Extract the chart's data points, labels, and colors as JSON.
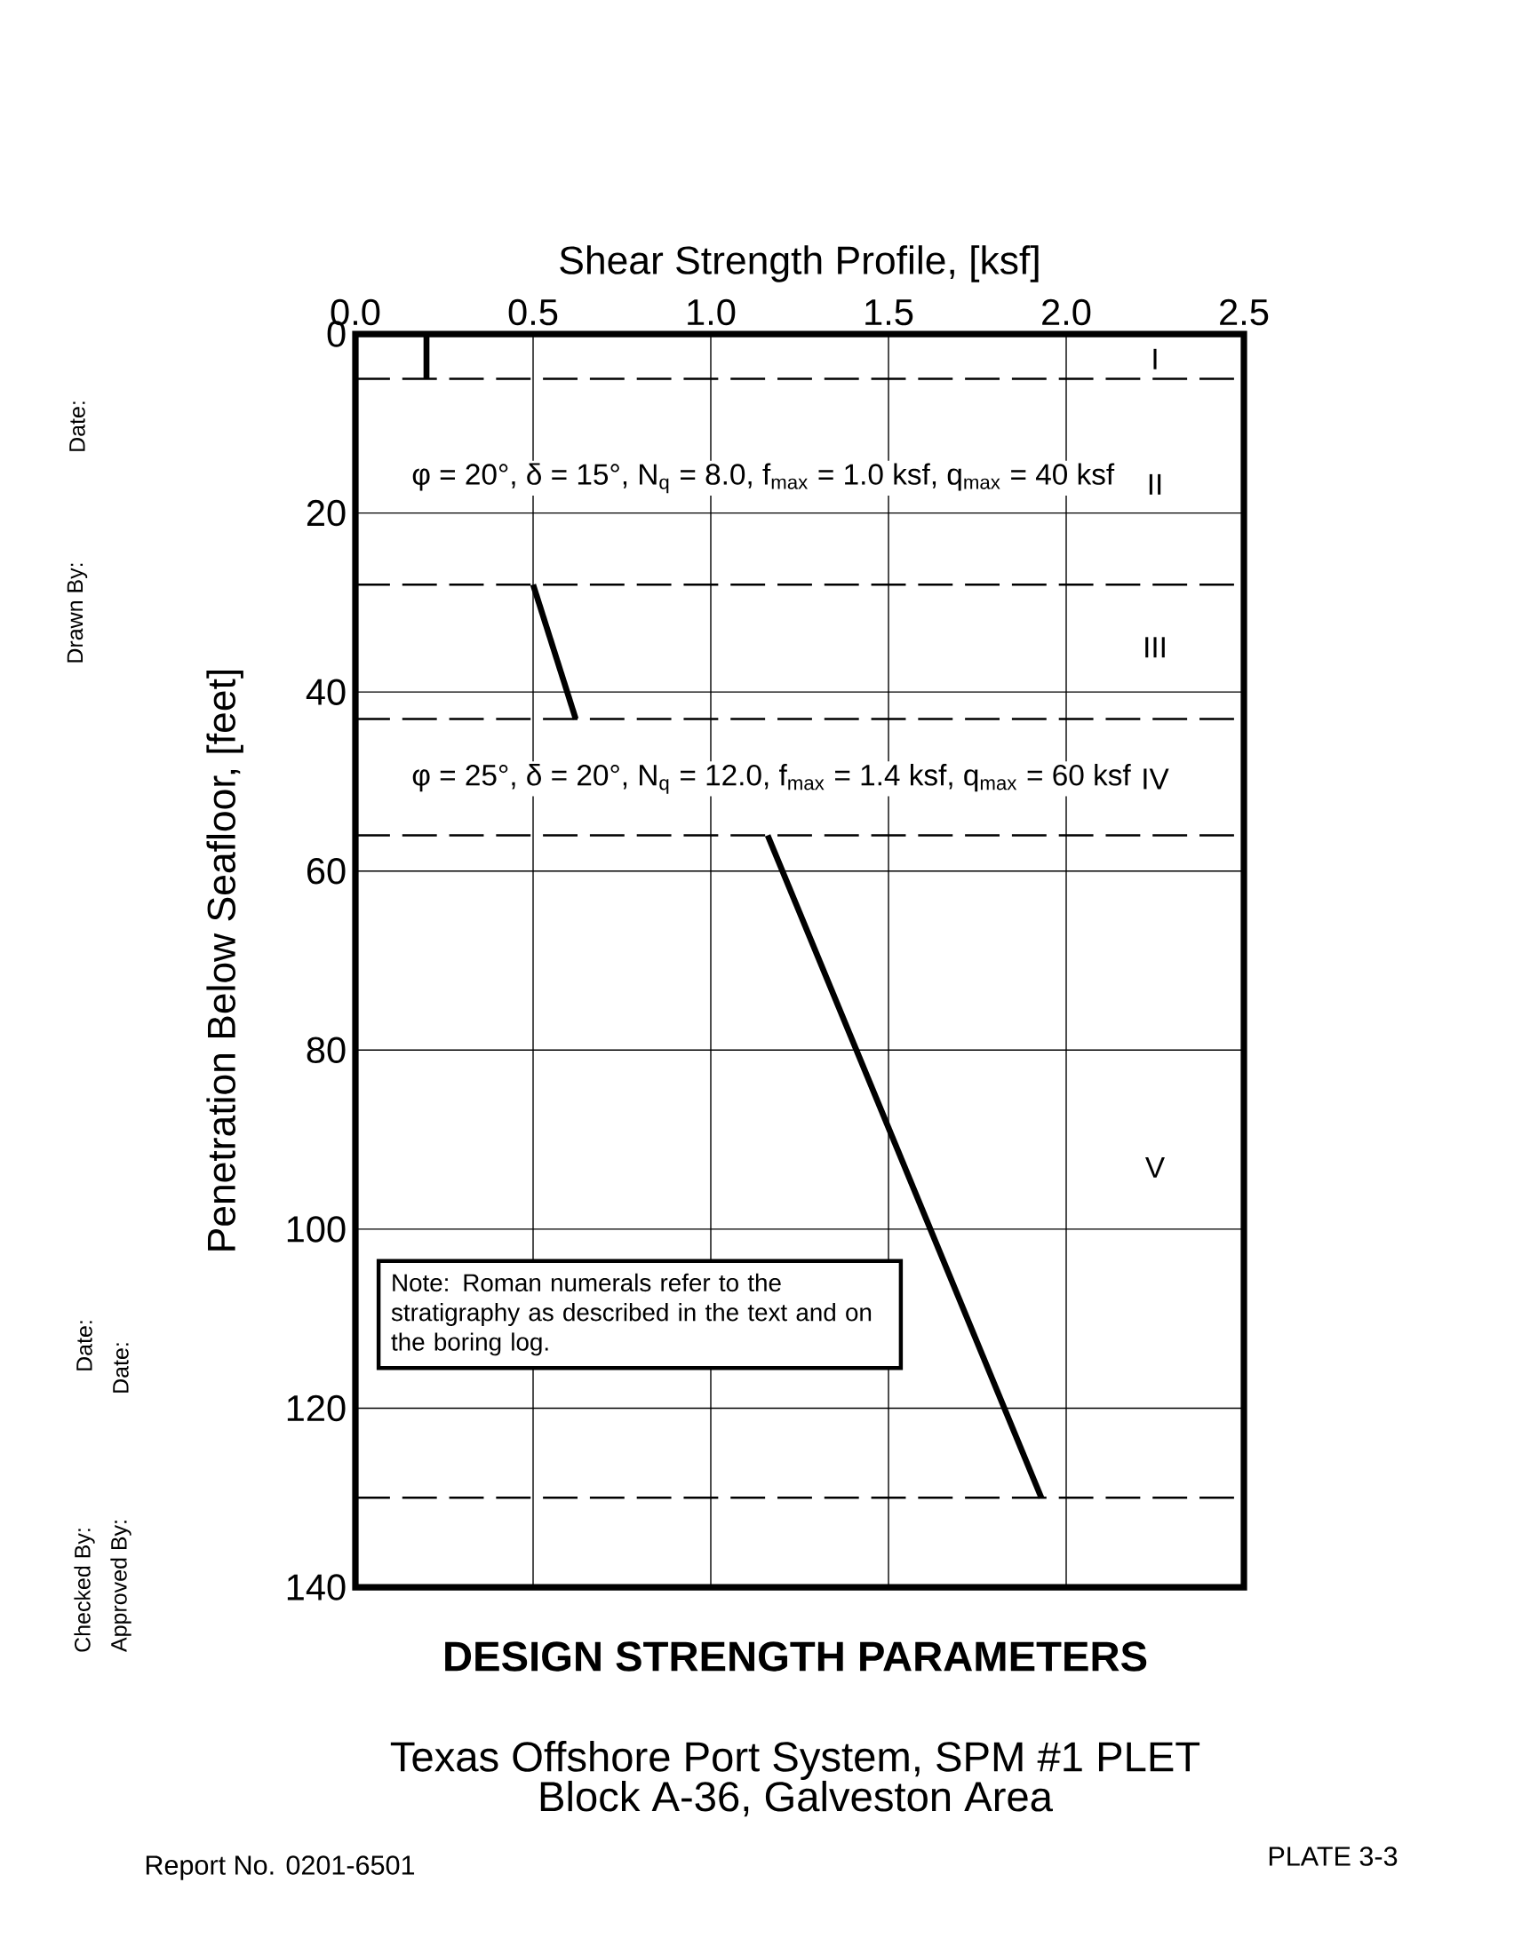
{
  "chart_data": {
    "type": "line",
    "title": "DESIGN STRENGTH PARAMETERS",
    "subtitle": "Texas Offshore Port System, SPM #1 PLET",
    "xlabel": "Shear Strength Profile, [ksf]",
    "ylabel": "Penetration Below Seafloor, [feet]",
    "xlim": [
      0,
      2.5
    ],
    "ylim": [
      140,
      0
    ],
    "xticks": [
      {
        "value": 0,
        "label": "0.0"
      },
      {
        "value": 0.5,
        "label": "0.5"
      },
      {
        "value": 1,
        "label": "1.0"
      },
      {
        "value": 1.5,
        "label": "1.5"
      },
      {
        "value": 2,
        "label": "2.0"
      },
      {
        "value": 2.5,
        "label": "2.5"
      }
    ],
    "yticks": [
      0,
      20,
      40,
      60,
      80,
      100,
      120,
      140
    ],
    "grid": true,
    "legend": false,
    "marker": "none",
    "series": [
      {
        "color": "#000000",
        "x": [
          0.2,
          0.2
        ],
        "values": [
          0,
          5
        ]
      },
      {
        "color": "#000000",
        "x": [
          0.5,
          0.62
        ],
        "values": [
          28,
          43
        ]
      },
      {
        "color": "#000000",
        "x": [
          1.16,
          1.93
        ],
        "values": [
          56,
          130
        ]
      }
    ],
    "ref_lines": [
      {
        "axis": "y",
        "value": 5,
        "line_style": "dashed"
      },
      {
        "axis": "y",
        "value": 28,
        "line_style": "dashed"
      },
      {
        "axis": "y",
        "value": 43,
        "line_style": "dashed"
      },
      {
        "axis": "y",
        "value": 56,
        "line_style": "dashed"
      },
      {
        "axis": "y",
        "value": 130,
        "line_style": "dashed"
      }
    ],
    "annotations": [
      "I",
      "II",
      "III",
      "IV",
      "V",
      "φ = 20°, δ = 15°, N$_{q}$ = 8.0, f$_{max}$ = 1.0 ksf, q$_{max}$ = 40 ksf",
      "φ = 25°, δ = 20°, N$_{q}$ = 12.0, f$_{max}$ = 1.4 ksf, q$_{max}$ = 60 ksf",
      "Note:  Roman numerals refer to the stratigraphy as described in the text and on the boring log.",
      "Block A-36, Galveston Area",
      "Report No. 0201-6501",
      "PLATE 3-3",
      "Drawn By:",
      "Date:",
      "Checked By:",
      "Date:",
      "Approved By:",
      "Date:"
    ]
  }
}
